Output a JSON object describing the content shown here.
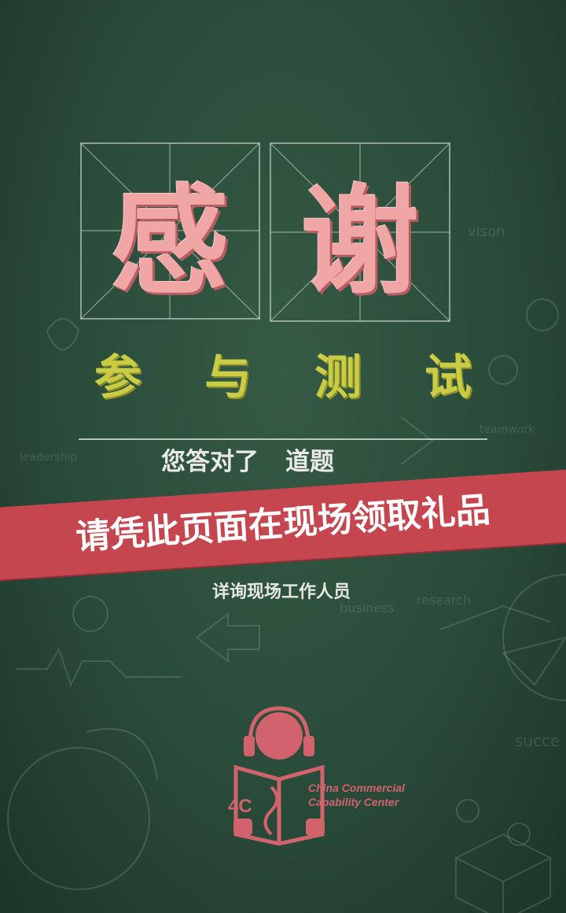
{
  "title": {
    "char1": "感",
    "char2": "谢"
  },
  "subtitle": {
    "chars": [
      "参",
      "与",
      "测",
      "试"
    ]
  },
  "result": {
    "part1": "您答对了",
    "part2": "道题"
  },
  "banner": {
    "text": "请凭此页面在现场领取礼品"
  },
  "note": "详询现场工作人员",
  "logo": {
    "short": "4C",
    "line1": "China Commercial",
    "line2": "Capability Center"
  },
  "chalk_doodles": [
    "vison",
    "leadership",
    "teamwork",
    "business",
    "research",
    "succe"
  ],
  "colors": {
    "board": "#2f5040",
    "title": "#f1a6a6",
    "subtitle": "#c9cc44",
    "banner": "#c5464f",
    "logo": "#d2636c"
  }
}
